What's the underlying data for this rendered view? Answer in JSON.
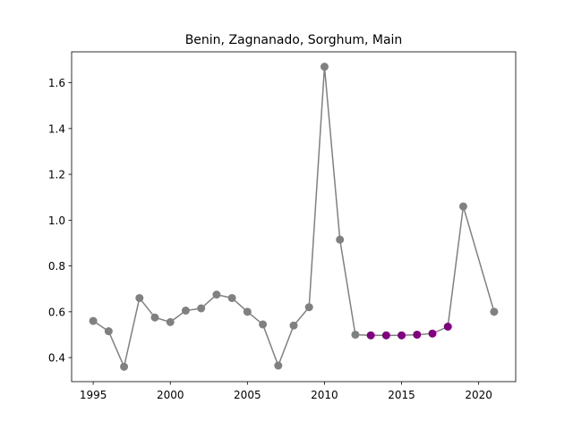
{
  "chart_data": {
    "type": "line",
    "title": "Benin, Zagnanado, Sorghum, Main",
    "xlabel": "",
    "ylabel": "",
    "xlim": [
      1993.6,
      2022.4
    ],
    "ylim": [
      0.295,
      1.735
    ],
    "xticks": [
      1995,
      2000,
      2005,
      2010,
      2015,
      2020
    ],
    "xtick_labels": [
      "1995",
      "2000",
      "2005",
      "2010",
      "2015",
      "2020"
    ],
    "yticks": [
      0.4,
      0.6,
      0.8,
      1.0,
      1.2,
      1.4,
      1.6
    ],
    "ytick_labels": [
      "0.4",
      "0.6",
      "0.8",
      "1.0",
      "1.2",
      "1.4",
      "1.6"
    ],
    "grid": false,
    "line_color": "#808080",
    "series": [
      {
        "color": "#808080",
        "x": [
          1995,
          1996,
          1997,
          1998,
          1999,
          2000,
          2001,
          2002,
          2003,
          2004,
          2005,
          2006,
          2007,
          2008,
          2009,
          2010,
          2011,
          2012,
          2019,
          2021
        ],
        "y": [
          0.56,
          0.515,
          0.36,
          0.66,
          0.575,
          0.555,
          0.605,
          0.615,
          0.675,
          0.66,
          0.6,
          0.545,
          0.365,
          0.54,
          0.62,
          1.67,
          0.915,
          0.5,
          1.06,
          0.6
        ]
      },
      {
        "color": "#800080",
        "x": [
          2013,
          2014,
          2015,
          2016,
          2017,
          2018
        ],
        "y": [
          0.497,
          0.497,
          0.497,
          0.5,
          0.505,
          0.535
        ]
      }
    ],
    "line_x": [
      1995,
      1996,
      1997,
      1998,
      1999,
      2000,
      2001,
      2002,
      2003,
      2004,
      2005,
      2006,
      2007,
      2008,
      2009,
      2010,
      2011,
      2012,
      2013,
      2014,
      2015,
      2016,
      2017,
      2018,
      2019,
      2021
    ],
    "line_y": [
      0.56,
      0.515,
      0.36,
      0.66,
      0.575,
      0.555,
      0.605,
      0.615,
      0.675,
      0.66,
      0.6,
      0.545,
      0.365,
      0.54,
      0.62,
      1.67,
      0.915,
      0.5,
      0.497,
      0.497,
      0.497,
      0.5,
      0.505,
      0.535,
      1.06,
      0.6
    ]
  }
}
